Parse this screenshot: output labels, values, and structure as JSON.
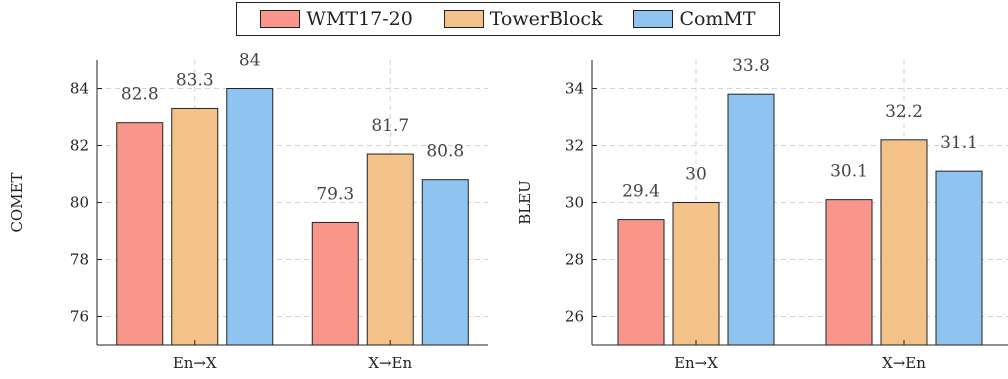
{
  "legend": [
    {
      "label": "WMT17-20",
      "color": "#f8968b"
    },
    {
      "label": "TowerBlock",
      "color": "#f2c28a"
    },
    {
      "label": "ComMT",
      "color": "#8fc3f0"
    }
  ],
  "chart_data": [
    {
      "type": "bar",
      "categories": [
        "En→X",
        "X→En"
      ],
      "series": [
        {
          "name": "WMT17-20",
          "values": [
            82.8,
            79.3
          ]
        },
        {
          "name": "TowerBlock",
          "values": [
            83.3,
            81.7
          ]
        },
        {
          "name": "ComMT",
          "values": [
            84,
            80.8
          ]
        }
      ],
      "ylabel": "COMET",
      "ylim": [
        75,
        85
      ],
      "yticks": [
        76,
        78,
        80,
        82,
        84
      ],
      "grid": true,
      "legend_position": "top-center"
    },
    {
      "type": "bar",
      "categories": [
        "En→X",
        "X→En"
      ],
      "series": [
        {
          "name": "WMT17-20",
          "values": [
            29.4,
            30.1
          ]
        },
        {
          "name": "TowerBlock",
          "values": [
            30,
            32.2
          ]
        },
        {
          "name": "ComMT",
          "values": [
            33.8,
            31.1
          ]
        }
      ],
      "ylabel": "BLEU",
      "ylim": [
        25,
        35
      ],
      "yticks": [
        26,
        28,
        30,
        32,
        34
      ],
      "grid": true,
      "legend_position": "top-center"
    }
  ]
}
